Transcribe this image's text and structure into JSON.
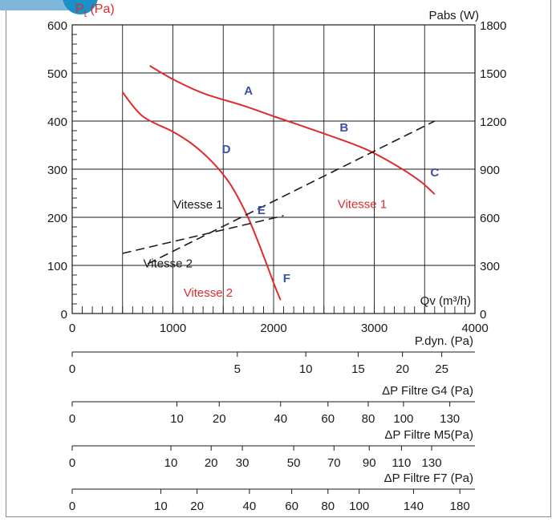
{
  "chart_data": {
    "type": "line",
    "x_axis": {
      "label": "Qv (m³/h)",
      "min": 0,
      "max": 4000,
      "ticks": [
        0,
        1000,
        2000,
        3000,
        4000
      ],
      "minor_step": 100
    },
    "y_left": {
      "label_main": "P",
      "label_sub": "t",
      "label_unit": " (Pa)",
      "min": 0,
      "max": 600,
      "ticks": [
        0,
        100,
        200,
        300,
        400,
        500,
        600
      ]
    },
    "y_right": {
      "label": "Pabs (W)",
      "min": 0,
      "max": 1800,
      "ticks": [
        0,
        300,
        600,
        900,
        1200,
        1500,
        1800
      ]
    },
    "grid": true,
    "series": [
      {
        "name": "Vitesse 1",
        "axis": "left",
        "style": "solid",
        "color": "#e02b2b",
        "x": [
          770,
          1000,
          1300,
          1700,
          2000,
          2500,
          2900,
          3200,
          3450,
          3600
        ],
        "y": [
          515,
          487,
          458,
          432,
          410,
          374,
          343,
          310,
          276,
          248
        ]
      },
      {
        "name": "Vitesse 2",
        "axis": "left",
        "style": "solid",
        "color": "#e02b2b",
        "x": [
          500,
          700,
          1000,
          1200,
          1400,
          1550,
          1650,
          1750,
          1850,
          1950,
          2020,
          2070
        ],
        "y": [
          460,
          410,
          378,
          351,
          313,
          275,
          240,
          198,
          147,
          92,
          53,
          28
        ]
      },
      {
        "name": "Vitesse 1",
        "axis": "right",
        "style": "dashed",
        "color": "#1a1a1a",
        "x": [
          750,
          3600
        ],
        "y": [
          310,
          1200
        ]
      },
      {
        "name": "Vitesse 2",
        "axis": "right",
        "style": "dashed",
        "color": "#1a1a1a",
        "x": [
          500,
          2100
        ],
        "y": [
          375,
          610
        ]
      }
    ],
    "point_labels": [
      {
        "text": "A",
        "x": 1750,
        "y": 455
      },
      {
        "text": "B",
        "x": 2700,
        "y": 378
      },
      {
        "text": "C",
        "x": 3600,
        "y": 285
      },
      {
        "text": "D",
        "x": 1530,
        "y": 333
      },
      {
        "text": "E",
        "x": 1880,
        "y": 207
      },
      {
        "text": "F",
        "x": 2130,
        "y": 65
      }
    ],
    "curve_labels": [
      {
        "text": "Vitesse 1",
        "x": 1250,
        "y": 218,
        "color": "#1a1a1a"
      },
      {
        "text": "Vitesse 2",
        "x": 950,
        "y": 96,
        "color": "#1a1a1a"
      },
      {
        "text": "Vitesse 1",
        "x": 2880,
        "y": 219,
        "color": "#e02b2b"
      },
      {
        "text": "Vitesse 2",
        "x": 1350,
        "y": 35,
        "color": "#e02b2b"
      }
    ],
    "secondary_scales": [
      {
        "title": "P.dyn. (Pa)",
        "ticks": [
          {
            "label": "0",
            "x": 0
          },
          {
            "label": "5",
            "x": 1640
          },
          {
            "label": "10",
            "x": 2320
          },
          {
            "label": "15",
            "x": 2840
          },
          {
            "label": "20",
            "x": 3280
          },
          {
            "label": "25",
            "x": 3670
          }
        ]
      },
      {
        "title": "ΔP Filtre G4 (Pa)",
        "ticks": [
          {
            "label": "0",
            "x": 0
          },
          {
            "label": "10",
            "x": 1040
          },
          {
            "label": "20",
            "x": 1460
          },
          {
            "label": "40",
            "x": 2070
          },
          {
            "label": "60",
            "x": 2540
          },
          {
            "label": "80",
            "x": 2940
          },
          {
            "label": "100",
            "x": 3290
          },
          {
            "label": "130",
            "x": 3750
          }
        ]
      },
      {
        "title": "ΔP Filtre M5(Pa)",
        "ticks": [
          {
            "label": "0",
            "x": 0
          },
          {
            "label": "10",
            "x": 980
          },
          {
            "label": "20",
            "x": 1380
          },
          {
            "label": "30",
            "x": 1690
          },
          {
            "label": "50",
            "x": 2200
          },
          {
            "label": "70",
            "x": 2600
          },
          {
            "label": "90",
            "x": 2950
          },
          {
            "label": "110",
            "x": 3270
          },
          {
            "label": "130",
            "x": 3570
          }
        ]
      },
      {
        "title": "ΔP Filtre F7 (Pa)",
        "ticks": [
          {
            "label": "0",
            "x": 0
          },
          {
            "label": "10",
            "x": 880
          },
          {
            "label": "20",
            "x": 1240
          },
          {
            "label": "40",
            "x": 1760
          },
          {
            "label": "60",
            "x": 2180
          },
          {
            "label": "80",
            "x": 2540
          },
          {
            "label": "100",
            "x": 2850
          },
          {
            "label": "140",
            "x": 3390
          },
          {
            "label": "180",
            "x": 3850
          }
        ]
      }
    ]
  }
}
